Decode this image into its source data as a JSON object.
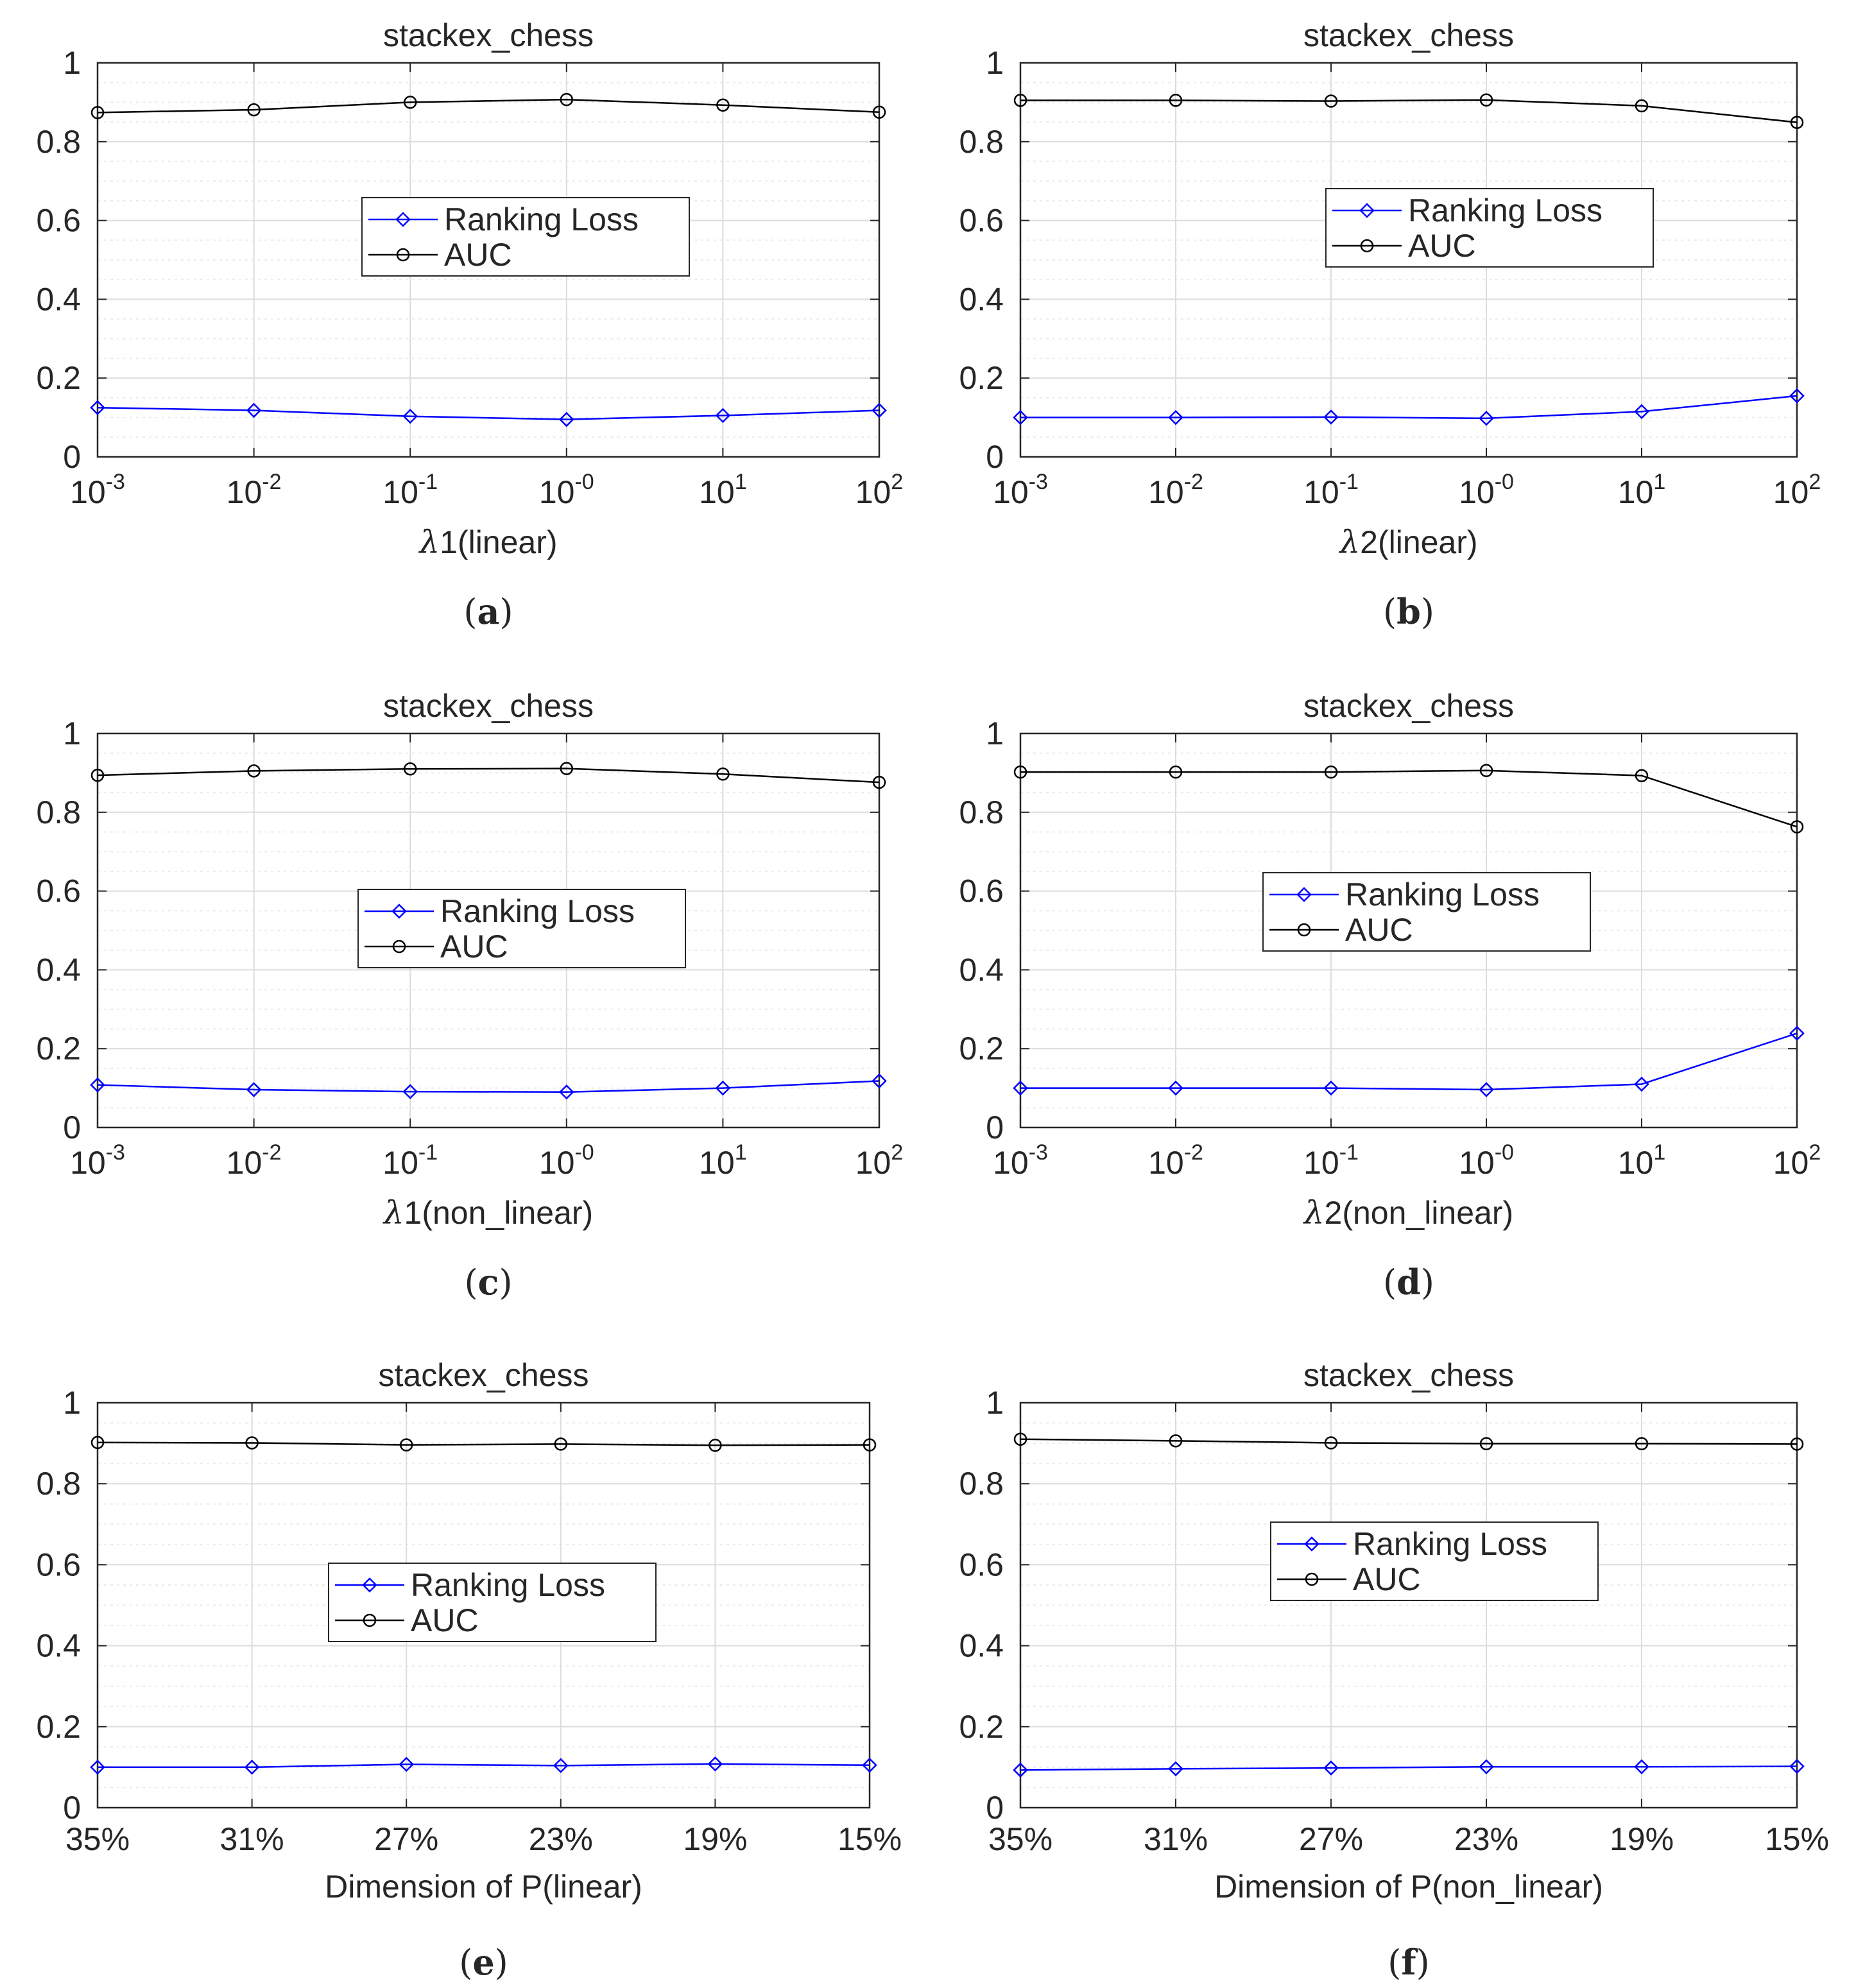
{
  "chart_data": [
    {
      "type": "line",
      "panel": "a",
      "caption_letter": "a",
      "title": "stackex_chess",
      "xlabel": "λ1(linear)",
      "xlabel_symbol": "λ",
      "xlabel_rest": "1(linear)",
      "categories": [
        {
          "base": "10",
          "exp": "-3"
        },
        {
          "base": "10",
          "exp": "-2"
        },
        {
          "base": "10",
          "exp": "-1"
        },
        {
          "base": "10",
          "exp": "-0"
        },
        {
          "base": "10",
          "exp": "1"
        },
        {
          "base": "10",
          "exp": "2"
        }
      ],
      "ylim": [
        0,
        1
      ],
      "yticks": [
        "0",
        "0.2",
        "0.4",
        "0.6",
        "0.8",
        "1"
      ],
      "grid": true,
      "legend_position": "center",
      "series": [
        {
          "name": "Ranking Loss",
          "color": "#0000ff",
          "marker": "diamond",
          "values": [
            0.125,
            0.118,
            0.103,
            0.095,
            0.105,
            0.118
          ]
        },
        {
          "name": "AUC",
          "color": "#000000",
          "marker": "circle",
          "values": [
            0.874,
            0.881,
            0.9,
            0.907,
            0.893,
            0.875
          ]
        }
      ]
    },
    {
      "type": "line",
      "panel": "b",
      "caption_letter": "b",
      "title": "stackex_chess",
      "xlabel": "λ2(linear)",
      "xlabel_symbol": "λ",
      "xlabel_rest": "2(linear)",
      "categories": [
        {
          "base": "10",
          "exp": "-3"
        },
        {
          "base": "10",
          "exp": "-2"
        },
        {
          "base": "10",
          "exp": "-1"
        },
        {
          "base": "10",
          "exp": "-0"
        },
        {
          "base": "10",
          "exp": "1"
        },
        {
          "base": "10",
          "exp": "2"
        }
      ],
      "ylim": [
        0,
        1
      ],
      "yticks": [
        "0",
        "0.2",
        "0.4",
        "0.6",
        "0.8",
        "1"
      ],
      "grid": true,
      "legend_position": "center",
      "series": [
        {
          "name": "Ranking Loss",
          "color": "#0000ff",
          "marker": "diamond",
          "values": [
            0.1,
            0.1,
            0.101,
            0.098,
            0.115,
            0.155
          ]
        },
        {
          "name": "AUC",
          "color": "#000000",
          "marker": "circle",
          "values": [
            0.905,
            0.905,
            0.903,
            0.906,
            0.891,
            0.849
          ]
        }
      ]
    },
    {
      "type": "line",
      "panel": "c",
      "caption_letter": "c",
      "title": "stackex_chess",
      "xlabel": "λ1(non_linear)",
      "xlabel_symbol": "λ",
      "xlabel_rest": "1(non_linear)",
      "categories": [
        {
          "base": "10",
          "exp": "-3"
        },
        {
          "base": "10",
          "exp": "-2"
        },
        {
          "base": "10",
          "exp": "-1"
        },
        {
          "base": "10",
          "exp": "-0"
        },
        {
          "base": "10",
          "exp": "1"
        },
        {
          "base": "10",
          "exp": "2"
        }
      ],
      "ylim": [
        0,
        1
      ],
      "yticks": [
        "0",
        "0.2",
        "0.4",
        "0.6",
        "0.8",
        "1"
      ],
      "grid": true,
      "legend_position": "center",
      "series": [
        {
          "name": "Ranking Loss",
          "color": "#0000ff",
          "marker": "diamond",
          "values": [
            0.108,
            0.096,
            0.091,
            0.09,
            0.1,
            0.118
          ]
        },
        {
          "name": "AUC",
          "color": "#000000",
          "marker": "circle",
          "values": [
            0.894,
            0.905,
            0.91,
            0.911,
            0.897,
            0.876
          ]
        }
      ]
    },
    {
      "type": "line",
      "panel": "d",
      "caption_letter": "d",
      "title": "stackex_chess",
      "xlabel": "λ2(non_linear)",
      "xlabel_symbol": "λ",
      "xlabel_rest": "2(non_linear)",
      "categories": [
        {
          "base": "10",
          "exp": "-3"
        },
        {
          "base": "10",
          "exp": "-2"
        },
        {
          "base": "10",
          "exp": "-1"
        },
        {
          "base": "10",
          "exp": "-0"
        },
        {
          "base": "10",
          "exp": "1"
        },
        {
          "base": "10",
          "exp": "2"
        }
      ],
      "ylim": [
        0,
        1
      ],
      "yticks": [
        "0",
        "0.2",
        "0.4",
        "0.6",
        "0.8",
        "1"
      ],
      "grid": true,
      "legend_position": "center",
      "series": [
        {
          "name": "Ranking Loss",
          "color": "#0000ff",
          "marker": "diamond",
          "values": [
            0.1,
            0.1,
            0.1,
            0.096,
            0.11,
            0.239
          ]
        },
        {
          "name": "AUC",
          "color": "#000000",
          "marker": "circle",
          "values": [
            0.902,
            0.902,
            0.902,
            0.906,
            0.893,
            0.763
          ]
        }
      ]
    },
    {
      "type": "line",
      "panel": "e",
      "caption_letter": "e",
      "title": "stackex_chess",
      "xlabel": "Dimension of P(linear)",
      "categories": [
        "35%",
        "31%",
        "27%",
        "23%",
        "19%",
        "15%"
      ],
      "ylim": [
        0,
        1
      ],
      "yticks": [
        "0",
        "0.2",
        "0.4",
        "0.6",
        "0.8",
        "1"
      ],
      "grid": true,
      "legend_position": "center",
      "series": [
        {
          "name": "Ranking Loss",
          "color": "#0000ff",
          "marker": "diamond",
          "values": [
            0.1,
            0.1,
            0.107,
            0.104,
            0.108,
            0.105
          ]
        },
        {
          "name": "AUC",
          "color": "#000000",
          "marker": "circle",
          "values": [
            0.902,
            0.901,
            0.896,
            0.898,
            0.895,
            0.896
          ]
        }
      ]
    },
    {
      "type": "line",
      "panel": "f",
      "caption_letter": "f",
      "title": "stackex_chess",
      "xlabel": "Dimension of P(non_linear)",
      "categories": [
        "35%",
        "31%",
        "27%",
        "23%",
        "19%",
        "15%"
      ],
      "ylim": [
        0,
        1
      ],
      "yticks": [
        "0",
        "0.2",
        "0.4",
        "0.6",
        "0.8",
        "1"
      ],
      "grid": true,
      "legend_position": "center",
      "series": [
        {
          "name": "Ranking Loss",
          "color": "#0000ff",
          "marker": "diamond",
          "values": [
            0.093,
            0.096,
            0.098,
            0.101,
            0.101,
            0.102
          ]
        },
        {
          "name": "AUC",
          "color": "#000000",
          "marker": "circle",
          "values": [
            0.91,
            0.906,
            0.901,
            0.899,
            0.899,
            0.898
          ]
        }
      ]
    }
  ]
}
